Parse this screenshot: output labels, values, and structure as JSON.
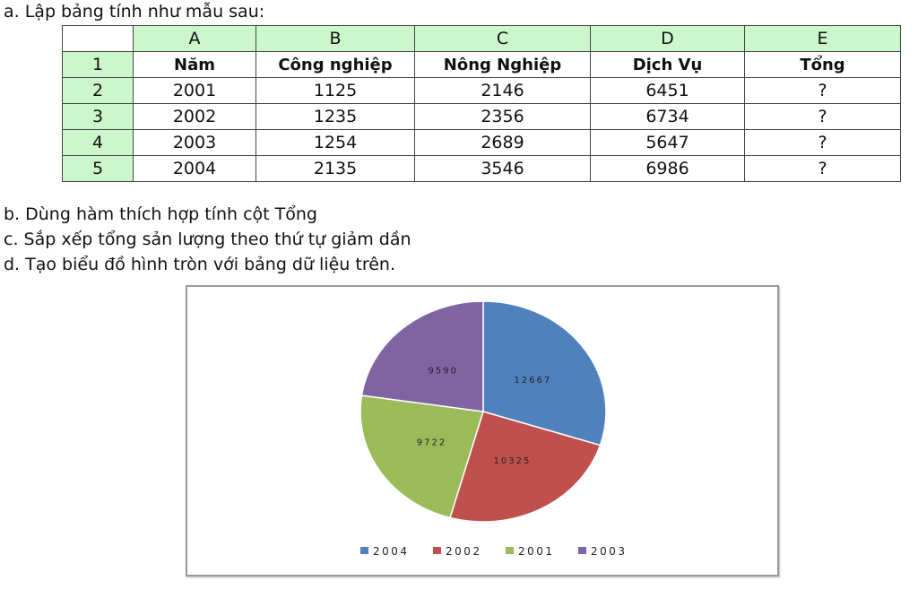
{
  "instructions": {
    "a": "a. Lập bảng tính như mẫu sau:",
    "b": "b. Dùng hàm thích hợp tính cột Tổng",
    "c": "c. Sắp xếp tổng sản lượng theo thứ tự giảm dần",
    "d": "d. Tạo biểu đồ hình tròn với bảng dữ liệu trên."
  },
  "table": {
    "column_letters": [
      "A",
      "B",
      "C",
      "D",
      "E"
    ],
    "row_numbers": [
      "1",
      "2",
      "3",
      "4",
      "5"
    ],
    "rows": [
      [
        "Năm",
        "Công nghiệp",
        "Nông Nghiệp",
        "Dịch Vụ",
        "Tổng"
      ],
      [
        "2001",
        "1125",
        "2146",
        "6451",
        "?"
      ],
      [
        "2002",
        "1235",
        "2356",
        "6734",
        "?"
      ],
      [
        "2003",
        "1254",
        "2689",
        "5647",
        "?"
      ],
      [
        "2004",
        "2135",
        "3546",
        "6986",
        "?"
      ]
    ],
    "header_color": "#ccf6cc"
  },
  "chart_data": {
    "type": "pie",
    "categories": [
      "2004",
      "2002",
      "2001",
      "2003"
    ],
    "values": [
      12667,
      10325,
      9722,
      9590
    ],
    "data_labels": [
      "12667",
      "10325",
      "9722",
      "9590"
    ],
    "colors": [
      "#4f81bd",
      "#c0504d",
      "#9bbb59",
      "#8064a2"
    ],
    "start": "top",
    "direction": "clockwise",
    "legend_position": "bottom"
  }
}
